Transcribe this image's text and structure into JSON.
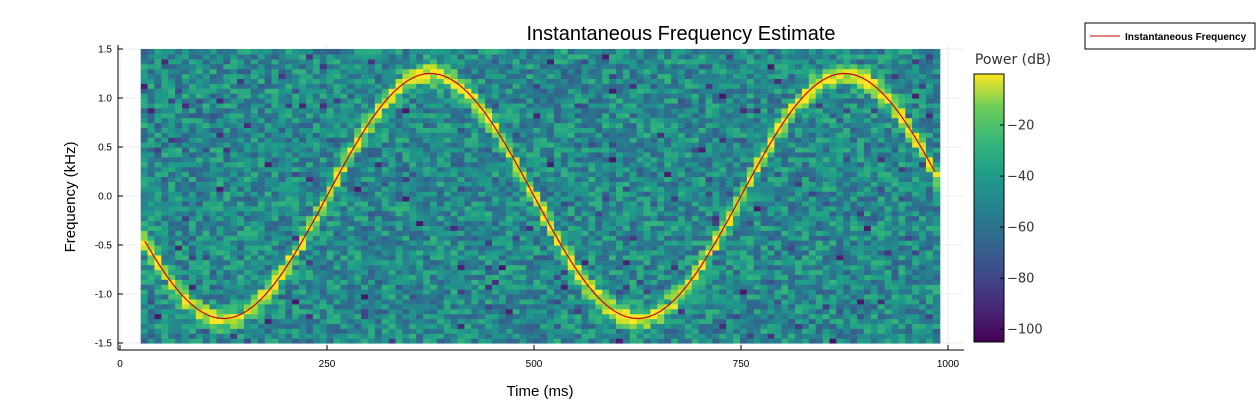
{
  "chart_data": {
    "type": "heatmap",
    "title": "Instantaneous Frequency Estimate",
    "xlabel": "Time (ms)",
    "ylabel": "Frequency (kHz)",
    "xlim": [
      0,
      1000
    ],
    "ylim": [
      -1.55,
      1.55
    ],
    "xticks": [
      0,
      250,
      500,
      750,
      1000
    ],
    "xtick_labels": [
      "0",
      "250",
      "500",
      "750",
      "1000"
    ],
    "yticks": [
      -1.5,
      -1.0,
      -0.5,
      0.0,
      0.5,
      1.0,
      1.5
    ],
    "ytick_labels": [
      "-1.5",
      "-1.0",
      "-0.5",
      "0.0",
      "0.5",
      "1.0",
      "1.5"
    ],
    "heatmap": {
      "colormap": "viridis",
      "x_range": [
        25,
        990
      ],
      "y_range": [
        -1.5,
        1.5
      ],
      "background_db": -55,
      "ridge_db": 0
    },
    "colorbar": {
      "title": "Power (dB)",
      "range": [
        -105,
        0
      ],
      "ticks": [
        -20,
        -40,
        -60,
        -80,
        -100
      ],
      "tick_labels": [
        "−20",
        "−40",
        "−60",
        "−80",
        "−100"
      ]
    },
    "series": [
      {
        "name": "Instantaneous Frequency",
        "color": "#cc0000",
        "function": "1.25*sin(2*pi*t/500 + pi)",
        "t_range": [
          30,
          985
        ]
      }
    ],
    "legend_position": "outside-top-right",
    "grid": true
  }
}
